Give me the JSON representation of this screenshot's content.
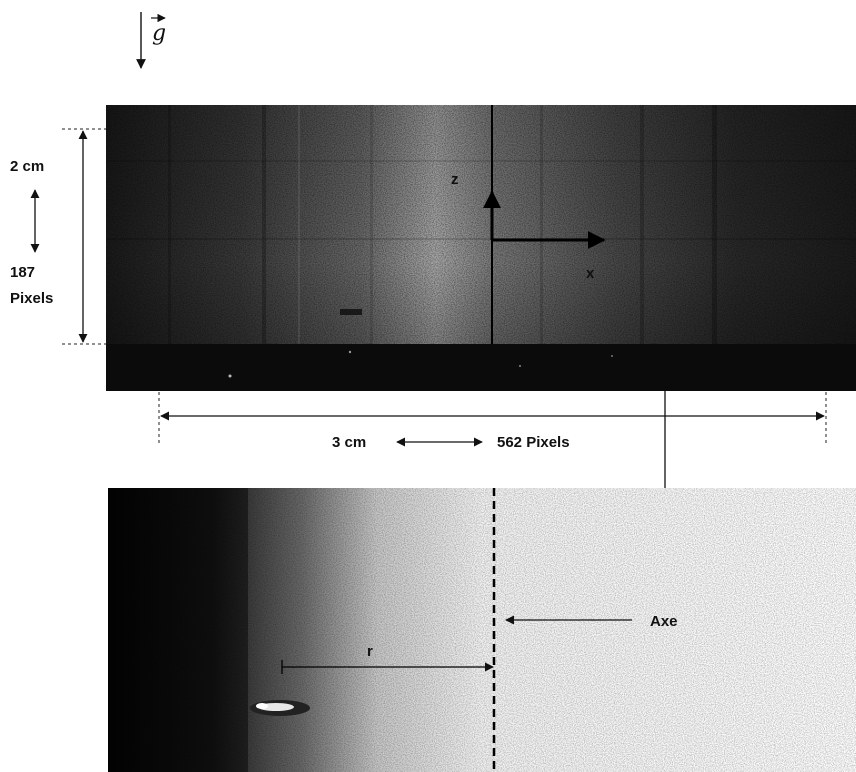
{
  "gravity": {
    "symbol": "g"
  },
  "scale_vertical": {
    "length": "2 cm",
    "pixels_value": "187",
    "pixels_unit": "Pixels"
  },
  "scale_horizontal": {
    "length": "3 cm",
    "pixels": "562 Pixels"
  },
  "axes": {
    "z_label": "z",
    "x_label": "x"
  },
  "axis_label": "Axe",
  "radius_label": "r",
  "colors": {
    "ink": "#111111",
    "background": "#ffffff"
  }
}
